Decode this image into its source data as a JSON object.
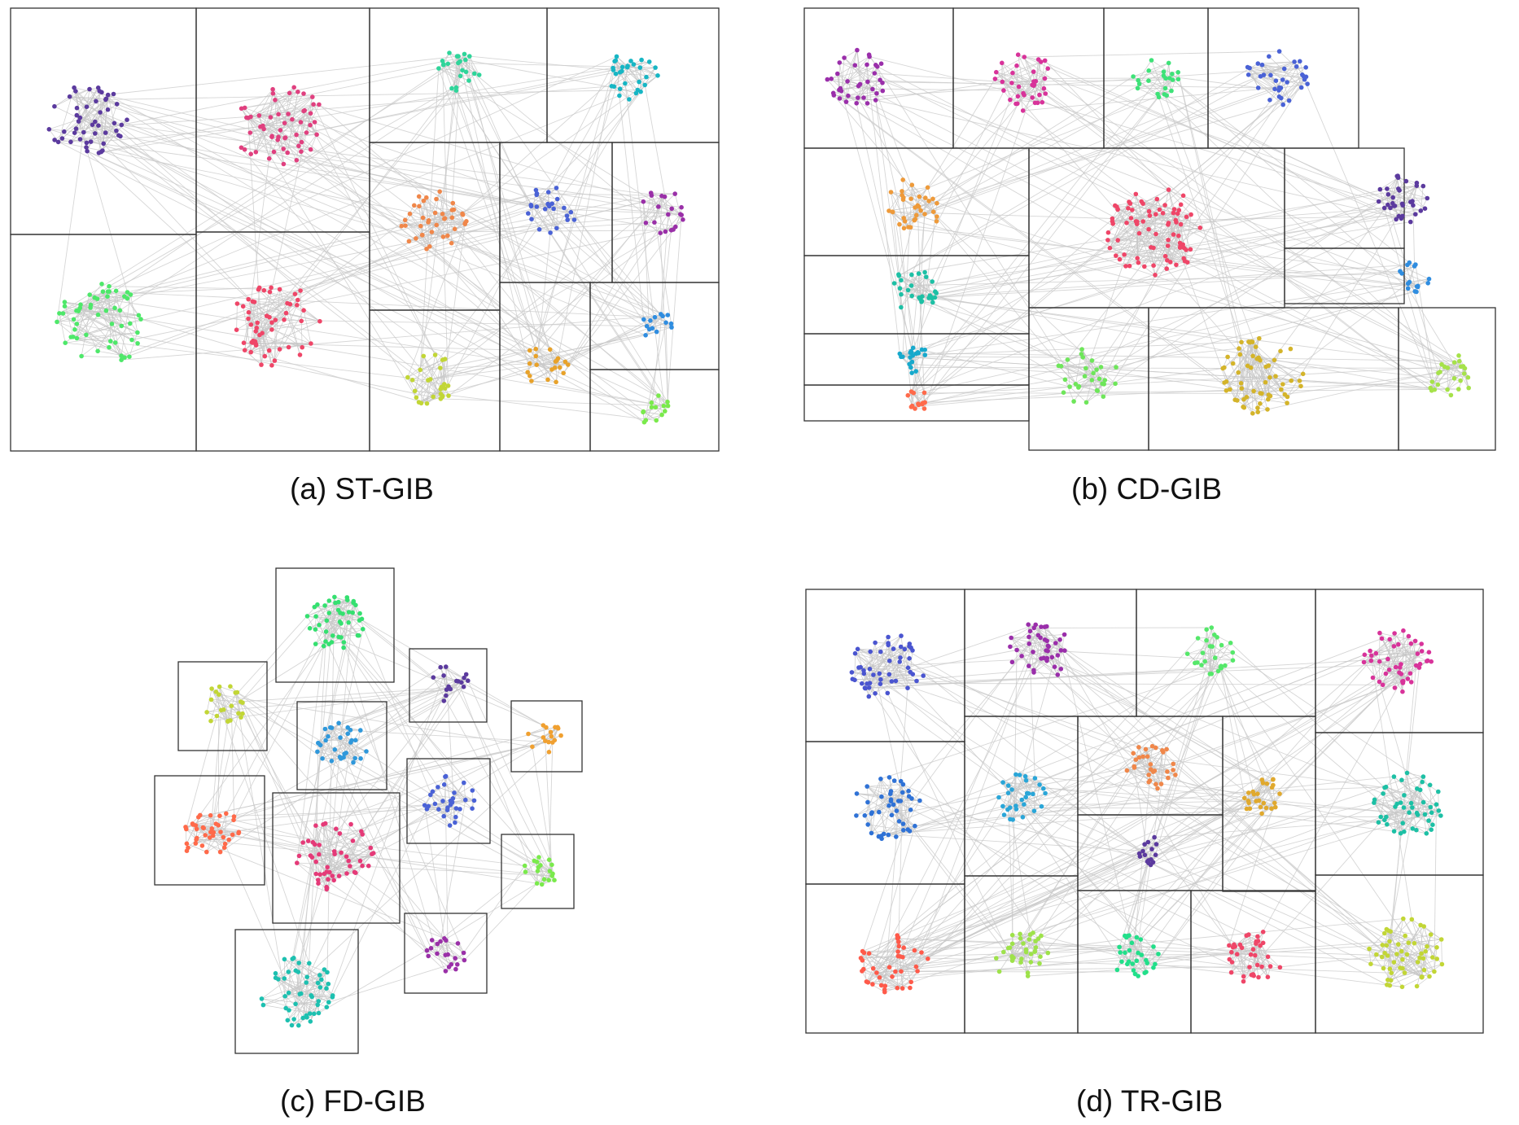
{
  "captions": {
    "a": "(a) ST-GIB",
    "b": "(b) CD-GIB",
    "c": "(c) FD-GIB",
    "d": "(d) TR-GIB"
  },
  "styles": {
    "edge_color": "#c8c8c8",
    "box_stroke": "#333333"
  },
  "panels": [
    {
      "id": "a",
      "label": "ST-GIB",
      "clusters": [
        {
          "color": "#5b3a9e",
          "nodes": 50
        },
        {
          "color": "#e0407f",
          "nodes": 55
        },
        {
          "color": "#2fd59a",
          "nodes": 22
        },
        {
          "color": "#17b6c4",
          "nodes": 30
        },
        {
          "color": "#f0874a",
          "nodes": 40
        },
        {
          "color": "#4a62d6",
          "nodes": 24
        },
        {
          "color": "#9a30a8",
          "nodes": 20
        },
        {
          "color": "#4ee86a",
          "nodes": 55
        },
        {
          "color": "#ef4668",
          "nodes": 55
        },
        {
          "color": "#2f8de0",
          "nodes": 14
        },
        {
          "color": "#c2d636",
          "nodes": 26
        },
        {
          "color": "#e8a22a",
          "nodes": 20
        },
        {
          "color": "#7aea4c",
          "nodes": 14
        }
      ]
    },
    {
      "id": "b",
      "label": "CD-GIB",
      "clusters": [
        {
          "color": "#9a2eaa",
          "nodes": 36
        },
        {
          "color": "#d8339a",
          "nodes": 36
        },
        {
          "color": "#3ee278",
          "nodes": 22
        },
        {
          "color": "#4a62d6",
          "nodes": 34
        },
        {
          "color": "#ee9a3a",
          "nodes": 34
        },
        {
          "color": "#ef4668",
          "nodes": 80
        },
        {
          "color": "#5b3a9e",
          "nodes": 34
        },
        {
          "color": "#1dc0a5",
          "nodes": 28
        },
        {
          "color": "#2f8de0",
          "nodes": 16
        },
        {
          "color": "#17a9cc",
          "nodes": 20
        },
        {
          "color": "#ff6a4a",
          "nodes": 14
        },
        {
          "color": "#6ee65a",
          "nodes": 30
        },
        {
          "color": "#d4b42a",
          "nodes": 60
        },
        {
          "color": "#a6e24a",
          "nodes": 24
        }
      ]
    },
    {
      "id": "c",
      "label": "FD-GIB",
      "clusters": [
        {
          "color": "#35e070",
          "nodes": 44
        },
        {
          "color": "#c2d636",
          "nodes": 22
        },
        {
          "color": "#5b3a9e",
          "nodes": 16
        },
        {
          "color": "#2f98db",
          "nodes": 30
        },
        {
          "color": "#f0a030",
          "nodes": 16
        },
        {
          "color": "#ff6a4a",
          "nodes": 40
        },
        {
          "color": "#4a62d6",
          "nodes": 30
        },
        {
          "color": "#e53a78",
          "nodes": 50
        },
        {
          "color": "#7aea4c",
          "nodes": 18
        },
        {
          "color": "#9a30a8",
          "nodes": 20
        },
        {
          "color": "#1dc0b0",
          "nodes": 50
        }
      ]
    },
    {
      "id": "d",
      "label": "TR-GIB",
      "clusters": [
        {
          "color": "#4a55d0",
          "nodes": 50
        },
        {
          "color": "#9a2eaa",
          "nodes": 40
        },
        {
          "color": "#55e86a",
          "nodes": 26
        },
        {
          "color": "#d8339a",
          "nodes": 46
        },
        {
          "color": "#2f72d6",
          "nodes": 44
        },
        {
          "color": "#2aa6d8",
          "nodes": 30
        },
        {
          "color": "#f0874a",
          "nodes": 30
        },
        {
          "color": "#e0a92e",
          "nodes": 26
        },
        {
          "color": "#1dc0a5",
          "nodes": 46
        },
        {
          "color": "#5b3a9e",
          "nodes": 16
        },
        {
          "color": "#ff5a4a",
          "nodes": 40
        },
        {
          "color": "#9ee24a",
          "nodes": 34
        },
        {
          "color": "#22df8a",
          "nodes": 30
        },
        {
          "color": "#ef4668",
          "nodes": 36
        },
        {
          "color": "#c2d636",
          "nodes": 56
        }
      ]
    }
  ]
}
